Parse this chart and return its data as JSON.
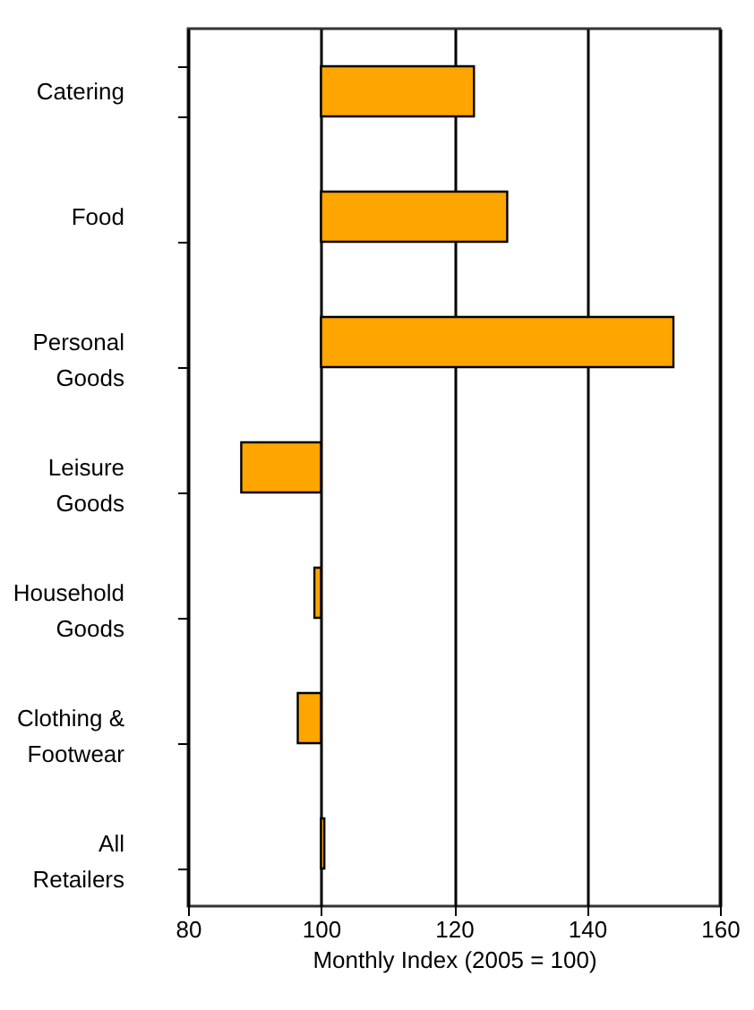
{
  "chart_data": {
    "type": "bar",
    "orientation": "horizontal",
    "xlabel": "Monthly Index (2005 = 100)",
    "categories": [
      "Catering",
      "Food",
      "Personal Goods",
      "Leisure Goods",
      "Household Goods",
      "Clothing & Footwear",
      "All Retailers"
    ],
    "base": [
      100,
      100,
      100,
      100,
      100,
      100,
      100
    ],
    "values": [
      23,
      28,
      53,
      -12,
      -1,
      -3.5,
      0.5
    ],
    "color": "#ffa500",
    "xlim": [
      80,
      160
    ],
    "xticks": [
      80,
      100,
      120,
      140,
      160
    ],
    "grid": "x"
  }
}
